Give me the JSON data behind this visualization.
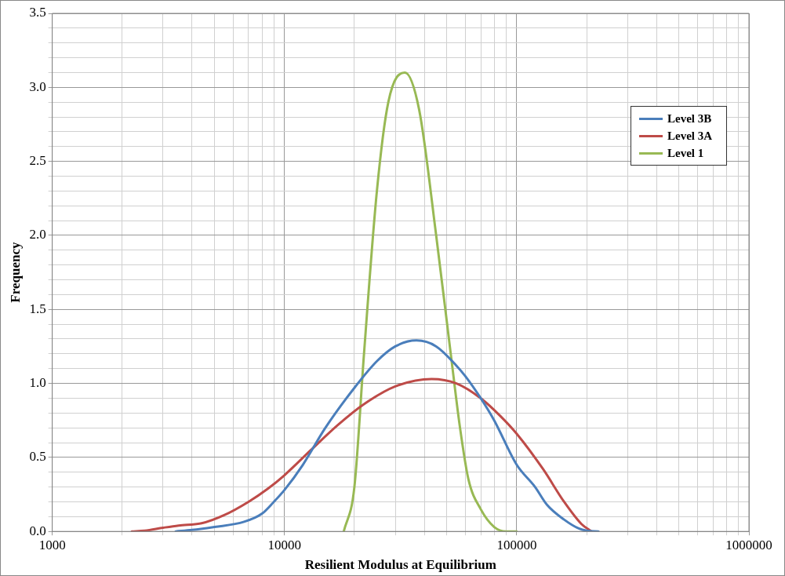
{
  "chart_data": {
    "type": "line",
    "xlabel": "Resilient Modulus at Equilibrium",
    "ylabel": "Frequency",
    "log": "x",
    "grid": true,
    "legend": "top right",
    "marker": "none",
    "line_style": "solid",
    "xlim": [
      1000,
      1000000
    ],
    "xticks": [
      1000,
      {
        "value": 2000,
        "label": null
      },
      {
        "value": 3000,
        "label": null
      },
      {
        "value": 4000,
        "label": null
      },
      {
        "value": 5000,
        "label": null
      },
      {
        "value": 6000,
        "label": null
      },
      {
        "value": 7000,
        "label": null
      },
      {
        "value": 8000,
        "label": null
      },
      {
        "value": 9000,
        "label": null
      },
      10000,
      {
        "value": 20000,
        "label": null
      },
      {
        "value": 30000,
        "label": null
      },
      {
        "value": 40000,
        "label": null
      },
      {
        "value": 50000,
        "label": null
      },
      {
        "value": 60000,
        "label": null
      },
      {
        "value": 70000,
        "label": null
      },
      {
        "value": 80000,
        "label": null
      },
      {
        "value": 90000,
        "label": null
      },
      100000,
      {
        "value": 200000,
        "label": null
      },
      {
        "value": 300000,
        "label": null
      },
      {
        "value": 400000,
        "label": null
      },
      {
        "value": 500000,
        "label": null
      },
      {
        "value": 600000,
        "label": null
      },
      {
        "value": 700000,
        "label": null
      },
      {
        "value": 800000,
        "label": null
      },
      {
        "value": 900000,
        "label": null
      },
      1000000
    ],
    "ylim": [
      0,
      3.5
    ],
    "yticks": [
      {
        "value": 0,
        "label": "0.0"
      },
      {
        "value": 0.1,
        "label": null
      },
      {
        "value": 0.2,
        "label": null
      },
      {
        "value": 0.3,
        "label": null
      },
      {
        "value": 0.4,
        "label": null
      },
      {
        "value": 0.5,
        "label": "0.5"
      },
      {
        "value": 0.6,
        "label": null
      },
      {
        "value": 0.7,
        "label": null
      },
      {
        "value": 0.8,
        "label": null
      },
      {
        "value": 0.9,
        "label": null
      },
      {
        "value": 1,
        "label": "1.0"
      },
      {
        "value": 1.1,
        "label": null
      },
      {
        "value": 1.2,
        "label": null
      },
      {
        "value": 1.3,
        "label": null
      },
      {
        "value": 1.4,
        "label": null
      },
      {
        "value": 1.5,
        "label": "1.5"
      },
      {
        "value": 1.6,
        "label": null
      },
      {
        "value": 1.7,
        "label": null
      },
      {
        "value": 1.8,
        "label": null
      },
      {
        "value": 1.9,
        "label": null
      },
      {
        "value": 2,
        "label": "2.0"
      },
      {
        "value": 2.1,
        "label": null
      },
      {
        "value": 2.2,
        "label": null
      },
      {
        "value": 2.3,
        "label": null
      },
      {
        "value": 2.4,
        "label": null
      },
      {
        "value": 2.5,
        "label": "2.5"
      },
      {
        "value": 2.6,
        "label": null
      },
      {
        "value": 2.7,
        "label": null
      },
      {
        "value": 2.8,
        "label": null
      },
      {
        "value": 2.9,
        "label": null
      },
      {
        "value": 3,
        "label": "3.0"
      },
      {
        "value": 3.1,
        "label": null
      },
      {
        "value": 3.2,
        "label": null
      },
      {
        "value": 3.3,
        "label": null
      },
      {
        "value": 3.4,
        "label": null
      },
      {
        "value": 3.5,
        "label": "3.5"
      }
    ],
    "series": [
      {
        "name": "Level 3B",
        "color": "#4a7ebb",
        "x": [
          3400,
          4000,
          5000,
          6700,
          8000,
          9000,
          10000,
          12000,
          15000,
          20000,
          25000,
          30000,
          37000,
          45000,
          55000,
          60000,
          70000,
          80000,
          100000,
          120000,
          135000,
          160000,
          185000,
          200000,
          225000
        ],
        "values": [
          0,
          0.01,
          0.03,
          0.065,
          0.12,
          0.2,
          0.28,
          0.45,
          0.7,
          0.97,
          1.15,
          1.25,
          1.29,
          1.25,
          1.12,
          1.05,
          0.9,
          0.75,
          0.45,
          0.3,
          0.18,
          0.08,
          0.02,
          0.005,
          0
        ]
      },
      {
        "name": "Level 3A",
        "color": "#be4b48",
        "x": [
          2200,
          2500,
          3000,
          3500,
          4400,
          5500,
          7000,
          8500,
          10000,
          13000,
          17000,
          22000,
          30000,
          43000,
          55000,
          70000,
          85000,
          100000,
          130000,
          160000,
          190000,
          210000
        ],
        "values": [
          0,
          0.005,
          0.025,
          0.04,
          0.055,
          0.11,
          0.2,
          0.29,
          0.38,
          0.55,
          0.72,
          0.86,
          0.98,
          1.03,
          1.0,
          0.9,
          0.78,
          0.66,
          0.42,
          0.2,
          0.05,
          0
        ]
      },
      {
        "name": "Level 1",
        "color": "#98b954",
        "x": [
          18000,
          20000,
          22000,
          25000,
          28000,
          33000,
          38000,
          45000,
          52000,
          57000,
          62000,
          70000,
          80000,
          90000,
          100000
        ],
        "values": [
          0,
          0.3,
          1.2,
          2.3,
          2.9,
          3.1,
          2.85,
          2.0,
          1.2,
          0.7,
          0.35,
          0.15,
          0.03,
          0,
          0
        ]
      }
    ]
  }
}
